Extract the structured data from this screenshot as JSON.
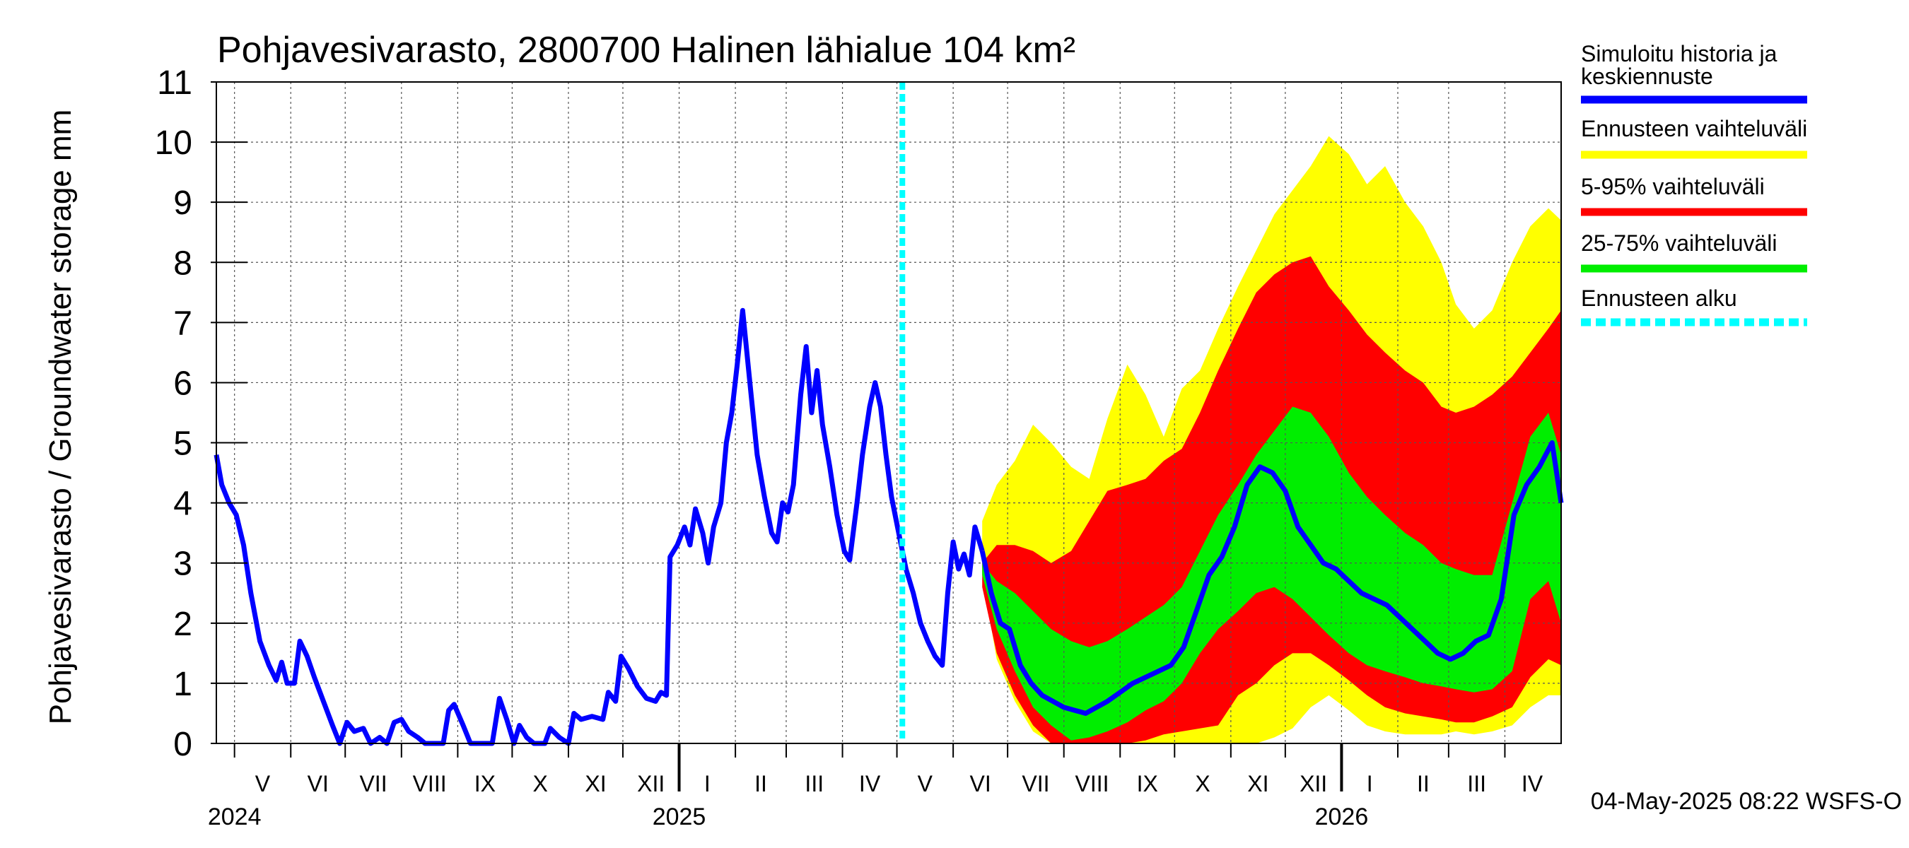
{
  "chart_data": {
    "type": "area",
    "title": "Pohjavesivarasto, 2800700 Halinen lähialue 104 km²",
    "ylabel": "Pohjavesivarasto / Groundwater storage   mm",
    "ylim": [
      0,
      11
    ],
    "yticks": [
      "0",
      "1",
      "2",
      "3",
      "4",
      "5",
      "6",
      "7",
      "8",
      "9",
      "10",
      "11"
    ],
    "xlim": [
      "2024-04-21",
      "2026-05-02"
    ],
    "month_labels": [
      {
        "label": "V",
        "start": "2024-05-01",
        "end": "2024-06-01"
      },
      {
        "label": "VI",
        "start": "2024-06-01",
        "end": "2024-07-01"
      },
      {
        "label": "VII",
        "start": "2024-07-01",
        "end": "2024-08-01"
      },
      {
        "label": "VIII",
        "start": "2024-08-01",
        "end": "2024-09-01"
      },
      {
        "label": "IX",
        "start": "2024-09-01",
        "end": "2024-10-01"
      },
      {
        "label": "X",
        "start": "2024-10-01",
        "end": "2024-11-01"
      },
      {
        "label": "XI",
        "start": "2024-11-01",
        "end": "2024-12-01"
      },
      {
        "label": "XII",
        "start": "2024-12-01",
        "end": "2025-01-01"
      },
      {
        "label": "I",
        "start": "2025-01-01",
        "end": "2025-02-01"
      },
      {
        "label": "II",
        "start": "2025-02-01",
        "end": "2025-03-01"
      },
      {
        "label": "III",
        "start": "2025-03-01",
        "end": "2025-04-01"
      },
      {
        "label": "IV",
        "start": "2025-04-01",
        "end": "2025-05-01"
      },
      {
        "label": "V",
        "start": "2025-05-01",
        "end": "2025-06-01"
      },
      {
        "label": "VI",
        "start": "2025-06-01",
        "end": "2025-07-01"
      },
      {
        "label": "VII",
        "start": "2025-07-01",
        "end": "2025-08-01"
      },
      {
        "label": "VIII",
        "start": "2025-08-01",
        "end": "2025-09-01"
      },
      {
        "label": "IX",
        "start": "2025-09-01",
        "end": "2025-10-01"
      },
      {
        "label": "X",
        "start": "2025-10-01",
        "end": "2025-11-01"
      },
      {
        "label": "XI",
        "start": "2025-11-01",
        "end": "2025-12-01"
      },
      {
        "label": "XII",
        "start": "2025-12-01",
        "end": "2026-01-01"
      },
      {
        "label": "I",
        "start": "2026-01-01",
        "end": "2026-02-01"
      },
      {
        "label": "II",
        "start": "2026-02-01",
        "end": "2026-03-01"
      },
      {
        "label": "III",
        "start": "2026-03-01",
        "end": "2026-04-01"
      },
      {
        "label": "IV",
        "start": "2026-04-01",
        "end": "2026-05-01"
      }
    ],
    "year_labels": [
      {
        "label": "2024",
        "date": "2024-05-01"
      },
      {
        "label": "2025",
        "date": "2025-01-01"
      },
      {
        "label": "2026",
        "date": "2026-01-01"
      }
    ],
    "forecast_start": "2025-05-04",
    "history": [
      [
        "2024-04-21",
        4.8
      ],
      [
        "2024-04-24",
        4.3
      ],
      [
        "2024-04-28",
        4.0
      ],
      [
        "2024-05-02",
        3.8
      ],
      [
        "2024-05-06",
        3.3
      ],
      [
        "2024-05-10",
        2.5
      ],
      [
        "2024-05-15",
        1.7
      ],
      [
        "2024-05-20",
        1.3
      ],
      [
        "2024-05-24",
        1.05
      ],
      [
        "2024-05-27",
        1.35
      ],
      [
        "2024-05-30",
        1.0
      ],
      [
        "2024-06-03",
        1.0
      ],
      [
        "2024-06-06",
        1.7
      ],
      [
        "2024-06-10",
        1.45
      ],
      [
        "2024-06-14",
        1.1
      ],
      [
        "2024-06-19",
        0.7
      ],
      [
        "2024-06-24",
        0.3
      ],
      [
        "2024-06-28",
        0.0
      ],
      [
        "2024-07-02",
        0.35
      ],
      [
        "2024-07-06",
        0.2
      ],
      [
        "2024-07-11",
        0.25
      ],
      [
        "2024-07-15",
        0.0
      ],
      [
        "2024-07-20",
        0.1
      ],
      [
        "2024-07-24",
        0.0
      ],
      [
        "2024-07-28",
        0.35
      ],
      [
        "2024-08-01",
        0.4
      ],
      [
        "2024-08-05",
        0.2
      ],
      [
        "2024-08-10",
        0.1
      ],
      [
        "2024-08-14",
        0.0
      ],
      [
        "2024-08-20",
        0.0
      ],
      [
        "2024-08-24",
        0.0
      ],
      [
        "2024-08-27",
        0.55
      ],
      [
        "2024-08-30",
        0.65
      ],
      [
        "2024-09-04",
        0.3
      ],
      [
        "2024-09-08",
        0.0
      ],
      [
        "2024-09-16",
        0.0
      ],
      [
        "2024-09-20",
        0.0
      ],
      [
        "2024-09-24",
        0.75
      ],
      [
        "2024-09-28",
        0.4
      ],
      [
        "2024-10-02",
        0.0
      ],
      [
        "2024-10-05",
        0.3
      ],
      [
        "2024-10-09",
        0.1
      ],
      [
        "2024-10-13",
        0.0
      ],
      [
        "2024-10-19",
        0.0
      ],
      [
        "2024-10-22",
        0.25
      ],
      [
        "2024-10-27",
        0.1
      ],
      [
        "2024-11-01",
        0.0
      ],
      [
        "2024-11-04",
        0.5
      ],
      [
        "2024-11-08",
        0.4
      ],
      [
        "2024-11-14",
        0.45
      ],
      [
        "2024-11-20",
        0.4
      ],
      [
        "2024-11-23",
        0.85
      ],
      [
        "2024-11-27",
        0.7
      ],
      [
        "2024-11-30",
        1.45
      ],
      [
        "2024-12-04",
        1.25
      ],
      [
        "2024-12-09",
        0.95
      ],
      [
        "2024-12-14",
        0.75
      ],
      [
        "2024-12-19",
        0.7
      ],
      [
        "2024-12-22",
        0.85
      ],
      [
        "2024-12-25",
        0.8
      ],
      [
        "2024-12-27",
        3.1
      ],
      [
        "2024-12-31",
        3.3
      ],
      [
        "2025-01-04",
        3.6
      ],
      [
        "2025-01-07",
        3.3
      ],
      [
        "2025-01-10",
        3.9
      ],
      [
        "2025-01-14",
        3.5
      ],
      [
        "2025-01-17",
        3.0
      ],
      [
        "2025-01-20",
        3.6
      ],
      [
        "2025-01-24",
        4.0
      ],
      [
        "2025-01-27",
        5.0
      ],
      [
        "2025-01-30",
        5.5
      ],
      [
        "2025-02-02",
        6.3
      ],
      [
        "2025-02-05",
        7.2
      ],
      [
        "2025-02-09",
        6.0
      ],
      [
        "2025-02-13",
        4.8
      ],
      [
        "2025-02-17",
        4.1
      ],
      [
        "2025-02-21",
        3.5
      ],
      [
        "2025-02-24",
        3.35
      ],
      [
        "2025-02-27",
        4.0
      ],
      [
        "2025-03-02",
        3.85
      ],
      [
        "2025-03-05",
        4.3
      ],
      [
        "2025-03-09",
        5.8
      ],
      [
        "2025-03-12",
        6.6
      ],
      [
        "2025-03-15",
        5.5
      ],
      [
        "2025-03-18",
        6.2
      ],
      [
        "2025-03-21",
        5.3
      ],
      [
        "2025-03-25",
        4.6
      ],
      [
        "2025-03-29",
        3.8
      ],
      [
        "2025-04-02",
        3.2
      ],
      [
        "2025-04-05",
        3.05
      ],
      [
        "2025-04-09",
        4.0
      ],
      [
        "2025-04-12",
        4.8
      ],
      [
        "2025-04-16",
        5.6
      ],
      [
        "2025-04-19",
        6.0
      ],
      [
        "2025-04-22",
        5.6
      ],
      [
        "2025-04-25",
        4.8
      ],
      [
        "2025-04-28",
        4.1
      ],
      [
        "2025-05-02",
        3.5
      ],
      [
        "2025-05-06",
        2.9
      ],
      [
        "2025-05-10",
        2.5
      ],
      [
        "2025-05-14",
        2.0
      ],
      [
        "2025-05-18",
        1.7
      ],
      [
        "2025-05-22",
        1.45
      ],
      [
        "2025-05-26",
        1.3
      ],
      [
        "2025-05-29",
        2.5
      ],
      [
        "2025-06-01",
        3.35
      ],
      [
        "2025-06-04",
        2.9
      ],
      [
        "2025-06-07",
        3.15
      ],
      [
        "2025-06-10",
        2.8
      ],
      [
        "2025-06-13",
        3.6
      ],
      [
        "2025-06-17",
        3.2
      ]
    ],
    "series": [
      {
        "name": "Ennusteen vaihteluväli",
        "color": "#ffff00",
        "x": [
          "2025-06-17",
          "2025-06-25",
          "2025-07-05",
          "2025-07-15",
          "2025-07-25",
          "2025-08-05",
          "2025-08-15",
          "2025-08-25",
          "2025-09-05",
          "2025-09-15",
          "2025-09-25",
          "2025-10-05",
          "2025-10-15",
          "2025-10-25",
          "2025-11-05",
          "2025-11-15",
          "2025-11-25",
          "2025-12-05",
          "2025-12-15",
          "2025-12-25",
          "2026-01-05",
          "2026-01-15",
          "2026-01-25",
          "2026-02-05",
          "2026-02-15",
          "2026-02-25",
          "2026-03-05",
          "2026-03-15",
          "2026-03-25",
          "2026-04-05",
          "2026-04-15",
          "2026-04-25",
          "2026-05-02"
        ],
        "upper": [
          3.7,
          4.3,
          4.7,
          5.3,
          5.0,
          4.6,
          4.4,
          5.4,
          6.3,
          5.8,
          5.1,
          5.9,
          6.2,
          6.9,
          7.6,
          8.2,
          8.8,
          9.2,
          9.6,
          10.1,
          9.8,
          9.3,
          9.6,
          9.0,
          8.6,
          8.0,
          7.3,
          6.9,
          7.2,
          8.0,
          8.6,
          8.9,
          8.7
        ],
        "lower": [
          2.8,
          1.4,
          0.7,
          0.2,
          0.0,
          0.0,
          0.0,
          0.0,
          0.0,
          0.0,
          0.0,
          0.0,
          0.0,
          0.0,
          0.0,
          0.0,
          0.1,
          0.25,
          0.6,
          0.8,
          0.55,
          0.3,
          0.2,
          0.15,
          0.15,
          0.15,
          0.2,
          0.15,
          0.2,
          0.3,
          0.6,
          0.8,
          0.8
        ]
      },
      {
        "name": "5-95% vaihteluväli",
        "color": "#ff0000",
        "x": [
          "2025-06-17",
          "2025-06-25",
          "2025-07-05",
          "2025-07-15",
          "2025-07-25",
          "2025-08-05",
          "2025-08-15",
          "2025-08-25",
          "2025-09-05",
          "2025-09-15",
          "2025-09-25",
          "2025-10-05",
          "2025-10-15",
          "2025-10-25",
          "2025-11-05",
          "2025-11-15",
          "2025-11-25",
          "2025-12-05",
          "2025-12-15",
          "2025-12-25",
          "2026-01-05",
          "2026-01-15",
          "2026-01-25",
          "2026-02-05",
          "2026-02-15",
          "2026-02-25",
          "2026-03-05",
          "2026-03-15",
          "2026-03-25",
          "2026-04-05",
          "2026-04-15",
          "2026-04-25",
          "2026-05-02"
        ],
        "upper": [
          3.0,
          3.3,
          3.3,
          3.2,
          3.0,
          3.2,
          3.7,
          4.2,
          4.3,
          4.4,
          4.7,
          4.9,
          5.5,
          6.2,
          6.9,
          7.5,
          7.8,
          8.0,
          8.1,
          7.6,
          7.2,
          6.8,
          6.5,
          6.2,
          6.0,
          5.6,
          5.5,
          5.6,
          5.8,
          6.1,
          6.5,
          6.9,
          7.2
        ],
        "lower": [
          2.6,
          1.5,
          0.8,
          0.3,
          0.0,
          0.0,
          0.0,
          0.0,
          0.0,
          0.05,
          0.15,
          0.2,
          0.25,
          0.3,
          0.8,
          1.0,
          1.3,
          1.5,
          1.5,
          1.3,
          1.05,
          0.8,
          0.6,
          0.5,
          0.45,
          0.4,
          0.35,
          0.35,
          0.45,
          0.6,
          1.1,
          1.4,
          1.3
        ]
      },
      {
        "name": "25-75% vaihteluväli",
        "color": "#00ee00",
        "x": [
          "2025-06-17",
          "2025-06-25",
          "2025-07-05",
          "2025-07-15",
          "2025-07-25",
          "2025-08-05",
          "2025-08-15",
          "2025-08-25",
          "2025-09-05",
          "2025-09-15",
          "2025-09-25",
          "2025-10-05",
          "2025-10-15",
          "2025-10-25",
          "2025-11-05",
          "2025-11-15",
          "2025-11-25",
          "2025-12-05",
          "2025-12-15",
          "2025-12-25",
          "2026-01-05",
          "2026-01-15",
          "2026-01-25",
          "2026-02-05",
          "2026-02-15",
          "2026-02-25",
          "2026-03-05",
          "2026-03-15",
          "2026-03-25",
          "2026-04-05",
          "2026-04-15",
          "2026-04-25",
          "2026-05-02"
        ],
        "upper": [
          3.0,
          2.7,
          2.5,
          2.2,
          1.9,
          1.7,
          1.6,
          1.7,
          1.9,
          2.1,
          2.3,
          2.6,
          3.2,
          3.8,
          4.3,
          4.8,
          5.2,
          5.6,
          5.5,
          5.1,
          4.5,
          4.1,
          3.8,
          3.5,
          3.3,
          3.0,
          2.9,
          2.8,
          2.8,
          4.0,
          5.1,
          5.5,
          4.8
        ],
        "lower": [
          2.8,
          1.9,
          1.2,
          0.6,
          0.3,
          0.05,
          0.1,
          0.2,
          0.35,
          0.55,
          0.7,
          1.0,
          1.5,
          1.9,
          2.2,
          2.5,
          2.6,
          2.4,
          2.1,
          1.8,
          1.5,
          1.3,
          1.2,
          1.1,
          1.0,
          0.95,
          0.9,
          0.85,
          0.9,
          1.2,
          2.4,
          2.7,
          2.0
        ]
      },
      {
        "name": "Simuloitu historia ja keskiennuste",
        "color": "#0000ff",
        "x": [
          "2025-06-17",
          "2025-06-22",
          "2025-06-27",
          "2025-07-02",
          "2025-07-08",
          "2025-07-14",
          "2025-07-20",
          "2025-07-26",
          "2025-08-01",
          "2025-08-07",
          "2025-08-13",
          "2025-08-19",
          "2025-08-25",
          "2025-09-01",
          "2025-09-08",
          "2025-09-15",
          "2025-09-22",
          "2025-09-29",
          "2025-10-06",
          "2025-10-13",
          "2025-10-20",
          "2025-10-27",
          "2025-11-03",
          "2025-11-10",
          "2025-11-17",
          "2025-11-24",
          "2025-12-01",
          "2025-12-08",
          "2025-12-15",
          "2025-12-22",
          "2025-12-29",
          "2026-01-05",
          "2026-01-12",
          "2026-01-19",
          "2026-01-26",
          "2026-02-02",
          "2026-02-09",
          "2026-02-16",
          "2026-02-23",
          "2026-03-02",
          "2026-03-09",
          "2026-03-16",
          "2026-03-23",
          "2026-03-30",
          "2026-04-06",
          "2026-04-13",
          "2026-04-20",
          "2026-04-27",
          "2026-05-02"
        ],
        "values": [
          3.2,
          2.5,
          2.0,
          1.9,
          1.3,
          1.0,
          0.8,
          0.7,
          0.6,
          0.55,
          0.5,
          0.6,
          0.7,
          0.85,
          1.0,
          1.1,
          1.2,
          1.3,
          1.6,
          2.2,
          2.8,
          3.1,
          3.6,
          4.3,
          4.6,
          4.5,
          4.2,
          3.6,
          3.3,
          3.0,
          2.9,
          2.7,
          2.5,
          2.4,
          2.3,
          2.1,
          1.9,
          1.7,
          1.5,
          1.4,
          1.5,
          1.7,
          1.8,
          2.4,
          3.8,
          4.3,
          4.6,
          5.0,
          4.0
        ]
      }
    ],
    "legend": [
      {
        "label": "Simuloitu historia ja keskiennuste",
        "color": "#0000ff",
        "style": "solid"
      },
      {
        "label": "Ennusteen vaihteluväli",
        "color": "#ffff00",
        "style": "solid"
      },
      {
        "label": "5-95% vaihteluväli",
        "color": "#ff0000",
        "style": "solid"
      },
      {
        "label": "25-75% vaihteluväli",
        "color": "#00ee00",
        "style": "solid"
      },
      {
        "label": "Ennusteen alku",
        "color": "#00ffff",
        "style": "dashed"
      }
    ],
    "legend_position": "right",
    "grid": true,
    "footer": "04-May-2025 08:22 WSFS-O"
  }
}
